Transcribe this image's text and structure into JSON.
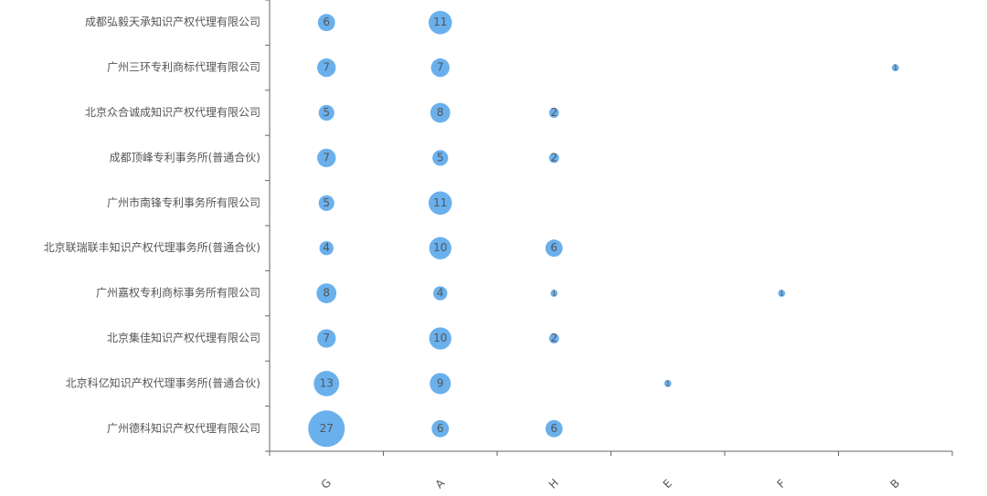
{
  "chart_data": {
    "type": "bubble",
    "color": "#6ab0ec",
    "y_categories": [
      "成都弘毅天承知识产权代理有限公司",
      "广州三环专利商标代理有限公司",
      "北京众合诚成知识产权代理有限公司",
      "成都顶峰专利事务所(普通合伙)",
      "广州市南锋专利事务所有限公司",
      "北京联瑞联丰知识产权代理事务所(普通合伙)",
      "广州嘉权专利商标事务所有限公司",
      "北京集佳知识产权代理有限公司",
      "北京科亿知识产权代理事务所(普通合伙)",
      "广州德科知识产权代理有限公司"
    ],
    "x_categories": [
      "G",
      "A",
      "H",
      "E",
      "F",
      "B"
    ],
    "values": [
      [
        6,
        11,
        null,
        null,
        null,
        null
      ],
      [
        7,
        7,
        null,
        null,
        null,
        1
      ],
      [
        5,
        8,
        2,
        null,
        null,
        null
      ],
      [
        7,
        5,
        2,
        null,
        null,
        null
      ],
      [
        5,
        11,
        null,
        null,
        null,
        null
      ],
      [
        4,
        10,
        6,
        null,
        null,
        null
      ],
      [
        8,
        4,
        1,
        null,
        1,
        null
      ],
      [
        7,
        10,
        2,
        null,
        null,
        null
      ],
      [
        13,
        9,
        null,
        1,
        null,
        null
      ],
      [
        27,
        6,
        6,
        null,
        null,
        null
      ]
    ]
  }
}
